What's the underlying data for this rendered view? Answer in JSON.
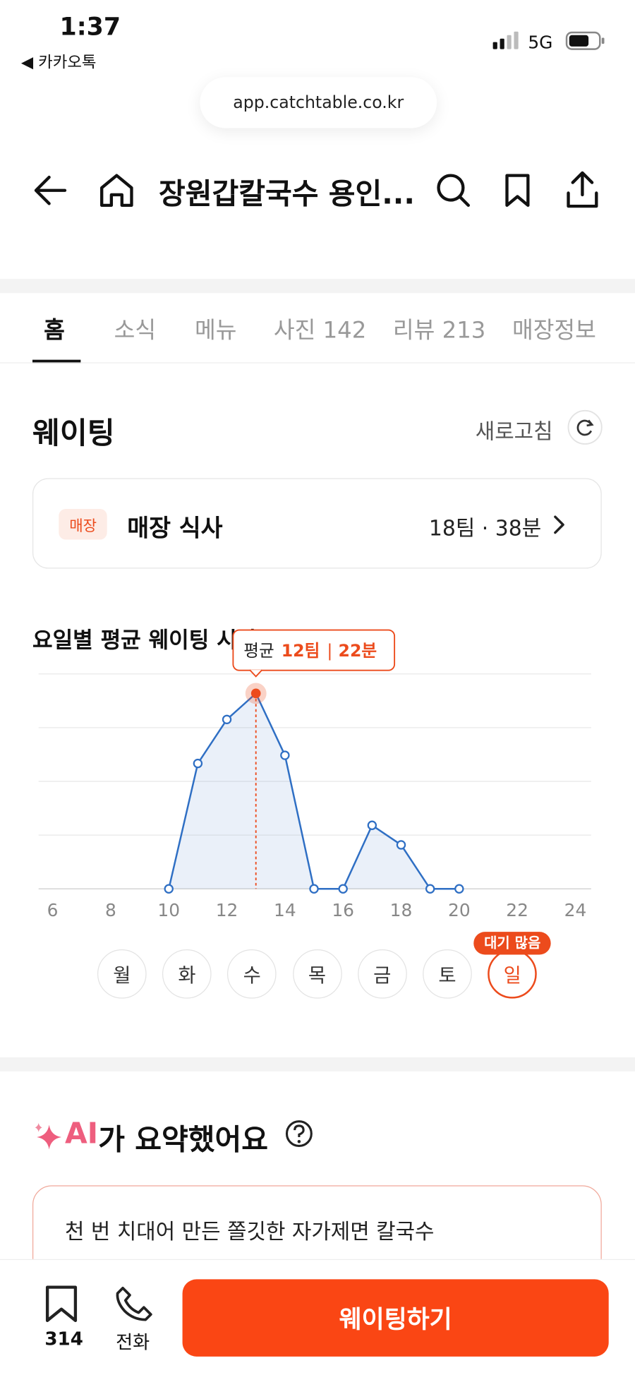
{
  "status_bar": {
    "time": "1:37",
    "back_app": "◀ 카카오톡",
    "network": "5G"
  },
  "url": "app.catchtable.co.kr",
  "header": {
    "title": "장원갑칼국수 용인..."
  },
  "tabs": [
    "홈",
    "소식",
    "메뉴",
    "사진 142",
    "리뷰 213",
    "매장정보"
  ],
  "waiting": {
    "title": "웨이팅",
    "refresh": "새로고침",
    "badge": "매장",
    "label": "매장 식사",
    "status": "18팀 · 38분"
  },
  "chart_data": {
    "type": "line",
    "title": "요일별 평균 웨이팅 시간",
    "x": [
      10,
      11,
      12,
      13,
      14,
      15,
      16,
      17,
      18,
      19,
      20
    ],
    "values": [
      0,
      7.7,
      10.4,
      12,
      8.2,
      0,
      0,
      3.9,
      2.7,
      0,
      0
    ],
    "color": "#2f6fc4",
    "xlim": [
      6,
      24
    ],
    "xticks": [
      6,
      8,
      10,
      12,
      14,
      16,
      18,
      20,
      22,
      24
    ],
    "ylim": [
      0,
      13.2
    ],
    "yticks": [
      0,
      3.3,
      6.6,
      9.9,
      13.2
    ],
    "grid": true,
    "highlight_x": 13,
    "tooltip": {
      "label": "평균",
      "teams": "12팀",
      "separator": "|",
      "minutes": "22분"
    },
    "days": [
      "월",
      "화",
      "수",
      "목",
      "금",
      "토",
      "일"
    ],
    "selected_day": "일",
    "day_badge": "대기 많음"
  },
  "ai_summary": {
    "title_ai": "AI",
    "title_rest": "가 요약했어요",
    "text": "천 번 치대어 만든 쫄깃한 자가제면 칼국수"
  },
  "bottom_bar": {
    "bookmark_count": "314",
    "phone": "전화",
    "button": "웨이팅하기"
  }
}
